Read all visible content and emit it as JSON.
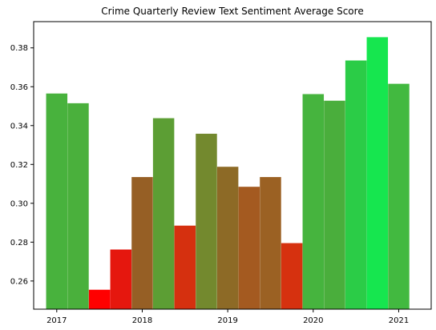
{
  "chart_data": {
    "type": "bar",
    "title": "Crime Quarterly Review Text Sentiment Average Score",
    "xlabel": "",
    "ylabel": "",
    "x_tick_labels": [
      "2017",
      "2018",
      "2019",
      "2020",
      "2021"
    ],
    "x_tick_values": [
      2017,
      2018,
      2019,
      2020,
      2021
    ],
    "y_tick_values": [
      0.26,
      0.28,
      0.3,
      0.32,
      0.34,
      0.36,
      0.38
    ],
    "y_tick_labels": [
      "0.26",
      "0.28",
      "0.30",
      "0.32",
      "0.34",
      "0.36",
      "0.38"
    ],
    "ylim": [
      0.2455,
      0.3935
    ],
    "xlim": [
      2016.73,
      2021.38
    ],
    "grid": false,
    "bars": [
      {
        "x": 2017.0,
        "value": 0.3565,
        "color": "#48b23d"
      },
      {
        "x": 2017.25,
        "value": 0.3515,
        "color": "#4ab03c"
      },
      {
        "x": 2017.5,
        "value": 0.2555,
        "color": "#ff0000"
      },
      {
        "x": 2017.75,
        "value": 0.2762,
        "color": "#e5170e"
      },
      {
        "x": 2018.0,
        "value": 0.3135,
        "color": "#965f25"
      },
      {
        "x": 2018.25,
        "value": 0.3438,
        "color": "#5c9e34"
      },
      {
        "x": 2018.5,
        "value": 0.2885,
        "color": "#d5300f"
      },
      {
        "x": 2018.75,
        "value": 0.3358,
        "color": "#73892e"
      },
      {
        "x": 2019.0,
        "value": 0.3188,
        "color": "#8d6a26"
      },
      {
        "x": 2019.25,
        "value": 0.3085,
        "color": "#a45a20"
      },
      {
        "x": 2019.5,
        "value": 0.3135,
        "color": "#9b6123"
      },
      {
        "x": 2019.75,
        "value": 0.2795,
        "color": "#d6310f"
      },
      {
        "x": 2020.0,
        "value": 0.3562,
        "color": "#46b43e"
      },
      {
        "x": 2020.25,
        "value": 0.3528,
        "color": "#4aae3c"
      },
      {
        "x": 2020.5,
        "value": 0.3735,
        "color": "#2bcc47"
      },
      {
        "x": 2020.75,
        "value": 0.3855,
        "color": "#16e64f"
      },
      {
        "x": 2021.0,
        "value": 0.3615,
        "color": "#42b940"
      }
    ]
  }
}
